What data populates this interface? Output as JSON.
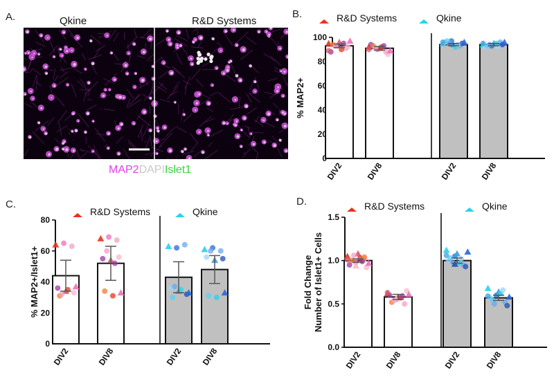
{
  "panel_a": {
    "letter": "A.",
    "left_title": "Qkine",
    "right_title": "R&D Systems",
    "stain_map2": "MAP2",
    "stain_dapi": "DAPI",
    "stain_islet1": "Islet1"
  },
  "colors": {
    "bar_white": "#ffffff",
    "bar_gray": "#c0c0c0",
    "rd_marker": "#e8341c",
    "qk_marker": "#27d3ea",
    "map2": "#e040e6",
    "dapi": "#c8c8c8",
    "islet1": "#38d33e"
  },
  "chart_data": [
    {
      "id": "B",
      "letter": "B.",
      "type": "bar",
      "ylabel": "% MAP2+",
      "ylim": [
        0,
        100
      ],
      "yticks": [
        0,
        20,
        40,
        60,
        80,
        100
      ],
      "legend": [
        "R&D Systems",
        "Qkine"
      ],
      "groups": [
        {
          "name": "R&D Systems",
          "categories": [
            "DIV2",
            "DIV8"
          ],
          "values": [
            93,
            91
          ],
          "errors": [
            1.5,
            1.5
          ]
        },
        {
          "name": "Qkine",
          "categories": [
            "DIV2",
            "DIV8"
          ],
          "values": [
            94,
            94
          ],
          "errors": [
            1,
            1
          ]
        }
      ],
      "points": [
        [
          [
            95,
            93,
            91,
            88,
            96,
            92,
            94,
            90,
            97,
            93,
            95,
            89
          ],
          [
            92,
            90,
            88,
            94,
            91,
            86,
            93,
            92,
            89,
            91,
            93,
            90
          ]
        ],
        [
          [
            95,
            97,
            93,
            96,
            94,
            95,
            97,
            92,
            96,
            95,
            94,
            96
          ],
          [
            94,
            93,
            96,
            92,
            95,
            94,
            93,
            95,
            96,
            94,
            92,
            95
          ]
        ]
      ]
    },
    {
      "id": "C",
      "letter": "C.",
      "type": "bar",
      "ylabel": "% MAP2+/Islet1+",
      "ylim": [
        0,
        80
      ],
      "yticks": [
        0,
        20,
        40,
        60,
        80
      ],
      "legend": [
        "R&D Systems",
        "Qkine"
      ],
      "groups": [
        {
          "name": "R&D Systems",
          "categories": [
            "DIV2",
            "DIV8"
          ],
          "values": [
            44,
            52
          ],
          "errors": [
            10,
            11
          ]
        },
        {
          "name": "Qkine",
          "categories": [
            "DIV2",
            "DIV8"
          ],
          "values": [
            43,
            48
          ],
          "errors": [
            10,
            9
          ]
        }
      ],
      "points": [
        [
          [
            64,
            65,
            63,
            36,
            34,
            33,
            31,
            35,
            37,
            32
          ],
          [
            68,
            69,
            67,
            55,
            54,
            56,
            34,
            31,
            33,
            60,
            52
          ]
        ],
        [
          [
            63,
            62,
            64,
            36,
            34,
            32,
            30,
            35,
            33,
            37
          ],
          [
            61,
            62,
            60,
            56,
            54,
            55,
            31,
            30,
            33,
            60
          ]
        ]
      ]
    },
    {
      "id": "D",
      "letter": "D.",
      "type": "bar",
      "ylabel": "Fold Change Number of Islet1+ Cells",
      "ylabel_lines": [
        "Fold Change",
        "Number of Islet1+ Cells"
      ],
      "ylim": [
        0,
        1.5
      ],
      "yticks": [
        "0.0",
        "0.5",
        "1.0",
        "1.5"
      ],
      "legend": [
        "R&D Systems",
        "Qkine"
      ],
      "groups": [
        {
          "name": "R&D Systems",
          "categories": [
            "DIV2",
            "DIV8"
          ],
          "values": [
            1.0,
            0.58
          ],
          "errors": [
            0.02,
            0.03
          ]
        },
        {
          "name": "Qkine",
          "categories": [
            "DIV2",
            "DIV8"
          ],
          "values": [
            1.0,
            0.57
          ],
          "errors": [
            0.03,
            0.03
          ]
        }
      ],
      "points": [
        [
          [
            1.05,
            0.98,
            1.02,
            0.95,
            1.08,
            0.92,
            1.0,
            1.03,
            0.97,
            1.06,
            0.99,
            1.01,
            0.94,
            1.04
          ],
          [
            0.62,
            0.55,
            0.5,
            0.6,
            0.58,
            0.65,
            0.52,
            0.57,
            0.61,
            0.54,
            0.59,
            0.63,
            0.56
          ]
        ],
        [
          [
            1.12,
            1.05,
            0.95,
            1.0,
            1.08,
            0.93,
            1.03,
            0.97,
            1.1,
            0.98,
            1.02,
            1.06,
            0.96
          ],
          [
            0.68,
            0.6,
            0.52,
            0.57,
            0.64,
            0.48,
            0.55,
            0.62,
            0.58,
            0.5,
            0.66,
            0.59
          ]
        ]
      ]
    }
  ]
}
